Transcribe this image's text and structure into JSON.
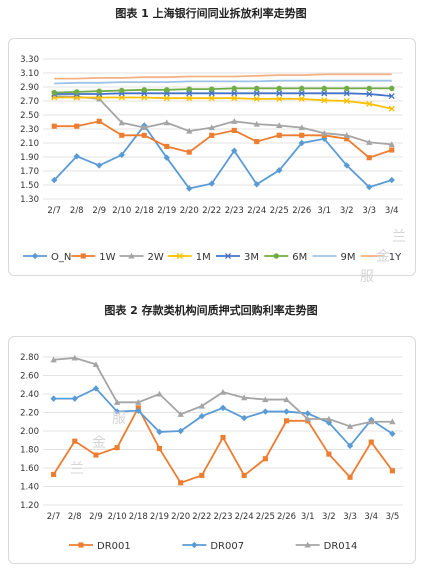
{
  "titles": {
    "chart1": "图表 1  上海银行间同业拆放利率走势图",
    "chart2": "图表 2 存款类机构间质押式回购利率走势图"
  },
  "watermark": [
    "兰",
    "金",
    "服",
    "兰",
    "金",
    "服"
  ],
  "chart_data": [
    {
      "type": "line",
      "title": "图表 1  上海银行间同业拆放利率走势图",
      "categories": [
        "2/7",
        "2/8",
        "2/9",
        "2/10",
        "2/18",
        "2/19",
        "2/20",
        "2/22",
        "2/23",
        "2/24",
        "2/25",
        "2/26",
        "3/1",
        "3/2",
        "3/3",
        "3/4"
      ],
      "yticks": [
        "1.30",
        "1.50",
        "1.70",
        "1.90",
        "2.10",
        "2.30",
        "2.50",
        "2.70",
        "2.90",
        "3.10",
        "3.30"
      ],
      "ylim": [
        1.3,
        3.3
      ],
      "legend_position": "bottom",
      "grid": true,
      "series": [
        {
          "name": "O_N",
          "color": "#5b9bd5",
          "marker": "diamond",
          "values": [
            1.57,
            1.91,
            1.78,
            1.93,
            2.35,
            1.89,
            1.45,
            1.52,
            1.99,
            1.51,
            1.71,
            2.1,
            2.16,
            1.78,
            1.47,
            1.57
          ]
        },
        {
          "name": "1W",
          "color": "#ed7d31",
          "marker": "square",
          "values": [
            2.34,
            2.34,
            2.41,
            2.21,
            2.21,
            2.05,
            1.97,
            2.21,
            2.28,
            2.12,
            2.21,
            2.21,
            2.21,
            2.16,
            1.89,
            2.0
          ]
        },
        {
          "name": "2W",
          "color": "#a5a5a5",
          "marker": "triangle",
          "values": [
            2.77,
            2.76,
            2.73,
            2.39,
            2.32,
            2.39,
            2.27,
            2.32,
            2.41,
            2.37,
            2.35,
            2.32,
            2.24,
            2.21,
            2.11,
            2.08
          ]
        },
        {
          "name": "1M",
          "color": "#ffc000",
          "marker": "x",
          "values": [
            2.75,
            2.75,
            2.75,
            2.75,
            2.75,
            2.74,
            2.74,
            2.74,
            2.74,
            2.73,
            2.73,
            2.73,
            2.71,
            2.7,
            2.66,
            2.59
          ]
        },
        {
          "name": "3M",
          "color": "#4472c4",
          "marker": "x",
          "values": [
            2.8,
            2.8,
            2.8,
            2.81,
            2.81,
            2.81,
            2.81,
            2.81,
            2.81,
            2.81,
            2.81,
            2.81,
            2.81,
            2.81,
            2.8,
            2.77
          ]
        },
        {
          "name": "6M",
          "color": "#70ad47",
          "marker": "circle",
          "values": [
            2.82,
            2.83,
            2.84,
            2.85,
            2.86,
            2.86,
            2.87,
            2.87,
            2.88,
            2.88,
            2.88,
            2.88,
            2.88,
            2.88,
            2.88,
            2.88
          ]
        },
        {
          "name": "9M",
          "color": "#9dc3e6",
          "marker": "line",
          "values": [
            2.95,
            2.96,
            2.96,
            2.97,
            2.97,
            2.97,
            2.98,
            2.98,
            2.98,
            2.98,
            2.99,
            2.99,
            2.99,
            2.99,
            2.99,
            2.99
          ]
        },
        {
          "name": "1Y",
          "color": "#f4b183",
          "marker": "line",
          "values": [
            3.02,
            3.02,
            3.03,
            3.03,
            3.04,
            3.04,
            3.05,
            3.05,
            3.05,
            3.06,
            3.07,
            3.07,
            3.08,
            3.08,
            3.08,
            3.08
          ]
        }
      ]
    },
    {
      "type": "line",
      "title": "图表 2 存款类机构间质押式回购利率走势图",
      "categories": [
        "2/7",
        "2/8",
        "2/9",
        "2/10",
        "2/18",
        "2/19",
        "2/20",
        "2/22",
        "2/23",
        "2/24",
        "2/25",
        "2/26",
        "3/1",
        "3/2",
        "3/3",
        "3/4",
        "3/5"
      ],
      "yticks": [
        "1.20",
        "1.40",
        "1.60",
        "1.80",
        "2.00",
        "2.20",
        "2.40",
        "2.60",
        "2.80"
      ],
      "ylim": [
        1.2,
        2.8
      ],
      "legend_position": "bottom",
      "grid": true,
      "series": [
        {
          "name": "DR001",
          "color": "#ed7d31",
          "marker": "square",
          "values": [
            1.53,
            1.89,
            1.74,
            1.82,
            2.25,
            1.81,
            1.44,
            1.52,
            1.93,
            1.52,
            1.7,
            2.11,
            2.11,
            1.75,
            1.5,
            1.88,
            1.57
          ]
        },
        {
          "name": "DR007",
          "color": "#5b9bd5",
          "marker": "diamond",
          "values": [
            2.35,
            2.35,
            2.46,
            2.21,
            2.22,
            1.99,
            2.0,
            2.16,
            2.25,
            2.14,
            2.21,
            2.21,
            2.19,
            2.09,
            1.84,
            2.12,
            1.97
          ]
        },
        {
          "name": "DR014",
          "color": "#a5a5a5",
          "marker": "triangle",
          "values": [
            2.77,
            2.79,
            2.72,
            2.31,
            2.31,
            2.4,
            2.18,
            2.27,
            2.42,
            2.36,
            2.34,
            2.34,
            2.13,
            2.13,
            2.05,
            2.1,
            2.1
          ]
        }
      ]
    }
  ]
}
